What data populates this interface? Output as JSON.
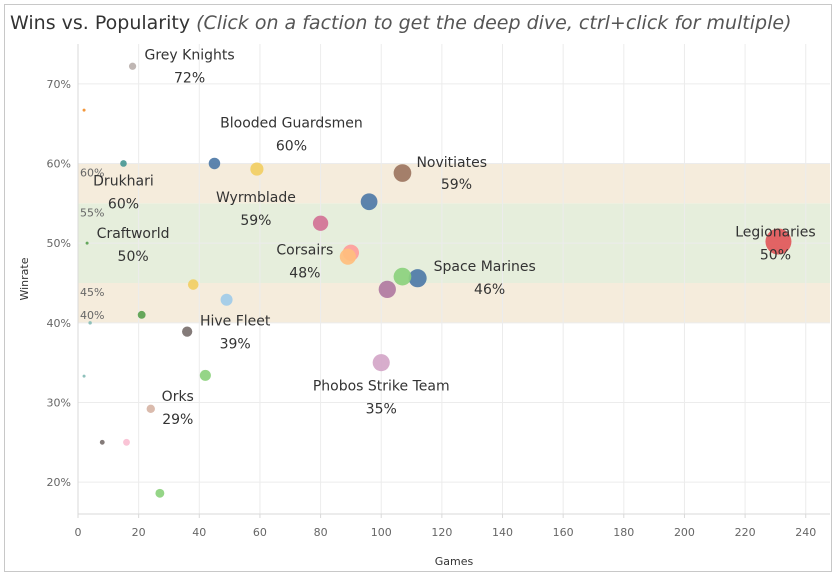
{
  "title": "Wins vs. Popularity",
  "subtitle": "(Click on a faction to get the deep dive, ctrl+click for multiple)",
  "chart_data": {
    "type": "scatter",
    "xlabel": "Games",
    "ylabel": "Winrate",
    "xlim": [
      0,
      248
    ],
    "ylim": [
      16,
      75
    ],
    "x_ticks": [
      0,
      20,
      40,
      60,
      80,
      100,
      120,
      140,
      160,
      180,
      200,
      220,
      240
    ],
    "y_ticks": [
      20,
      30,
      40,
      50,
      60,
      70
    ],
    "y_tick_labels": [
      "20%",
      "30%",
      "40%",
      "50%",
      "60%",
      "70%"
    ],
    "grid": true,
    "bands": [
      {
        "from": 40,
        "to": 45,
        "color": "#f5ecdc",
        "label": "45%"
      },
      {
        "from": 45,
        "to": 55,
        "color": "#e6eedc",
        "label": "55%"
      },
      {
        "from": 55,
        "to": 60,
        "color": "#f5ecdc",
        "label": "60%"
      }
    ],
    "bottom_band_label": "40%",
    "points": [
      {
        "x": 231,
        "y": 50.2,
        "size": 231,
        "color": "#e15759",
        "label": "Legionaries",
        "value_label": "50%"
      },
      {
        "x": 112,
        "y": 45.6,
        "size": 112,
        "color": "#4e79a7",
        "label": "Space Marines",
        "value_label": "46%"
      },
      {
        "x": 107,
        "y": 45.8,
        "size": 107,
        "color": "#8cd17d",
        "label": "",
        "value_label": ""
      },
      {
        "x": 107,
        "y": 58.8,
        "size": 107,
        "color": "#9c755f",
        "label": "Novitiates",
        "value_label": "59%"
      },
      {
        "x": 102,
        "y": 44.2,
        "size": 102,
        "color": "#b07aa1",
        "label": "",
        "value_label": ""
      },
      {
        "x": 100,
        "y": 35.0,
        "size": 100,
        "color": "#d4a6c8",
        "label": "Phobos Strike Team",
        "value_label": "35%"
      },
      {
        "x": 96,
        "y": 55.2,
        "size": 96,
        "color": "#4e79a7",
        "label": "",
        "value_label": ""
      },
      {
        "x": 90,
        "y": 48.8,
        "size": 90,
        "color": "#ff9d9a",
        "label": "",
        "value_label": ""
      },
      {
        "x": 89,
        "y": 48.3,
        "size": 89,
        "color": "#ffbe7d",
        "label": "Corsairs",
        "value_label": "48%"
      },
      {
        "x": 80,
        "y": 52.5,
        "size": 80,
        "color": "#d37295",
        "label": "",
        "value_label": ""
      },
      {
        "x": 59,
        "y": 59.3,
        "size": 59,
        "color": "#f1ce63",
        "label": "Wyrmblade",
        "value_label": "59%"
      },
      {
        "x": 45,
        "y": 60.0,
        "size": 45,
        "color": "#4e79a7",
        "label": "Blooded Guardsmen",
        "value_label": "60%"
      },
      {
        "x": 49,
        "y": 42.9,
        "size": 49,
        "color": "#a0cbe8",
        "label": "",
        "value_label": ""
      },
      {
        "x": 42,
        "y": 33.4,
        "size": 42,
        "color": "#8cd17d",
        "label": "",
        "value_label": ""
      },
      {
        "x": 38,
        "y": 44.8,
        "size": 38,
        "color": "#f1ce63",
        "label": "",
        "value_label": ""
      },
      {
        "x": 36,
        "y": 38.9,
        "size": 36,
        "color": "#79706e",
        "label": "Hive Fleet",
        "value_label": "39%"
      },
      {
        "x": 27,
        "y": 18.6,
        "size": 27,
        "color": "#8cd17d",
        "label": "",
        "value_label": ""
      },
      {
        "x": 24,
        "y": 29.2,
        "size": 24,
        "color": "#d7b5a6",
        "label": "Orks",
        "value_label": "29%"
      },
      {
        "x": 21,
        "y": 41.0,
        "size": 21,
        "color": "#59a14f",
        "label": "",
        "value_label": ""
      },
      {
        "x": 18,
        "y": 72.2,
        "size": 18,
        "color": "#bab0ac",
        "label": "Grey Knights",
        "value_label": "72%"
      },
      {
        "x": 16,
        "y": 25.0,
        "size": 16,
        "color": "#fabfd2",
        "label": "",
        "value_label": ""
      },
      {
        "x": 15,
        "y": 60.0,
        "size": 15,
        "color": "#499894",
        "label": "Drukhari",
        "value_label": "60%"
      },
      {
        "x": 8,
        "y": 25.0,
        "size": 8,
        "color": "#79706e",
        "label": "",
        "value_label": ""
      },
      {
        "x": 4,
        "y": 40.0,
        "size": 4,
        "color": "#86bcb6",
        "label": "",
        "value_label": ""
      },
      {
        "x": 3,
        "y": 50.0,
        "size": 3,
        "color": "#59a14f",
        "label": "Craftworld",
        "value_label": "50%"
      },
      {
        "x": 2,
        "y": 66.7,
        "size": 2,
        "color": "#f28e2b",
        "label": "",
        "value_label": ""
      },
      {
        "x": 2,
        "y": 33.3,
        "size": 2,
        "color": "#86bcb6",
        "label": "",
        "value_label": ""
      }
    ]
  }
}
